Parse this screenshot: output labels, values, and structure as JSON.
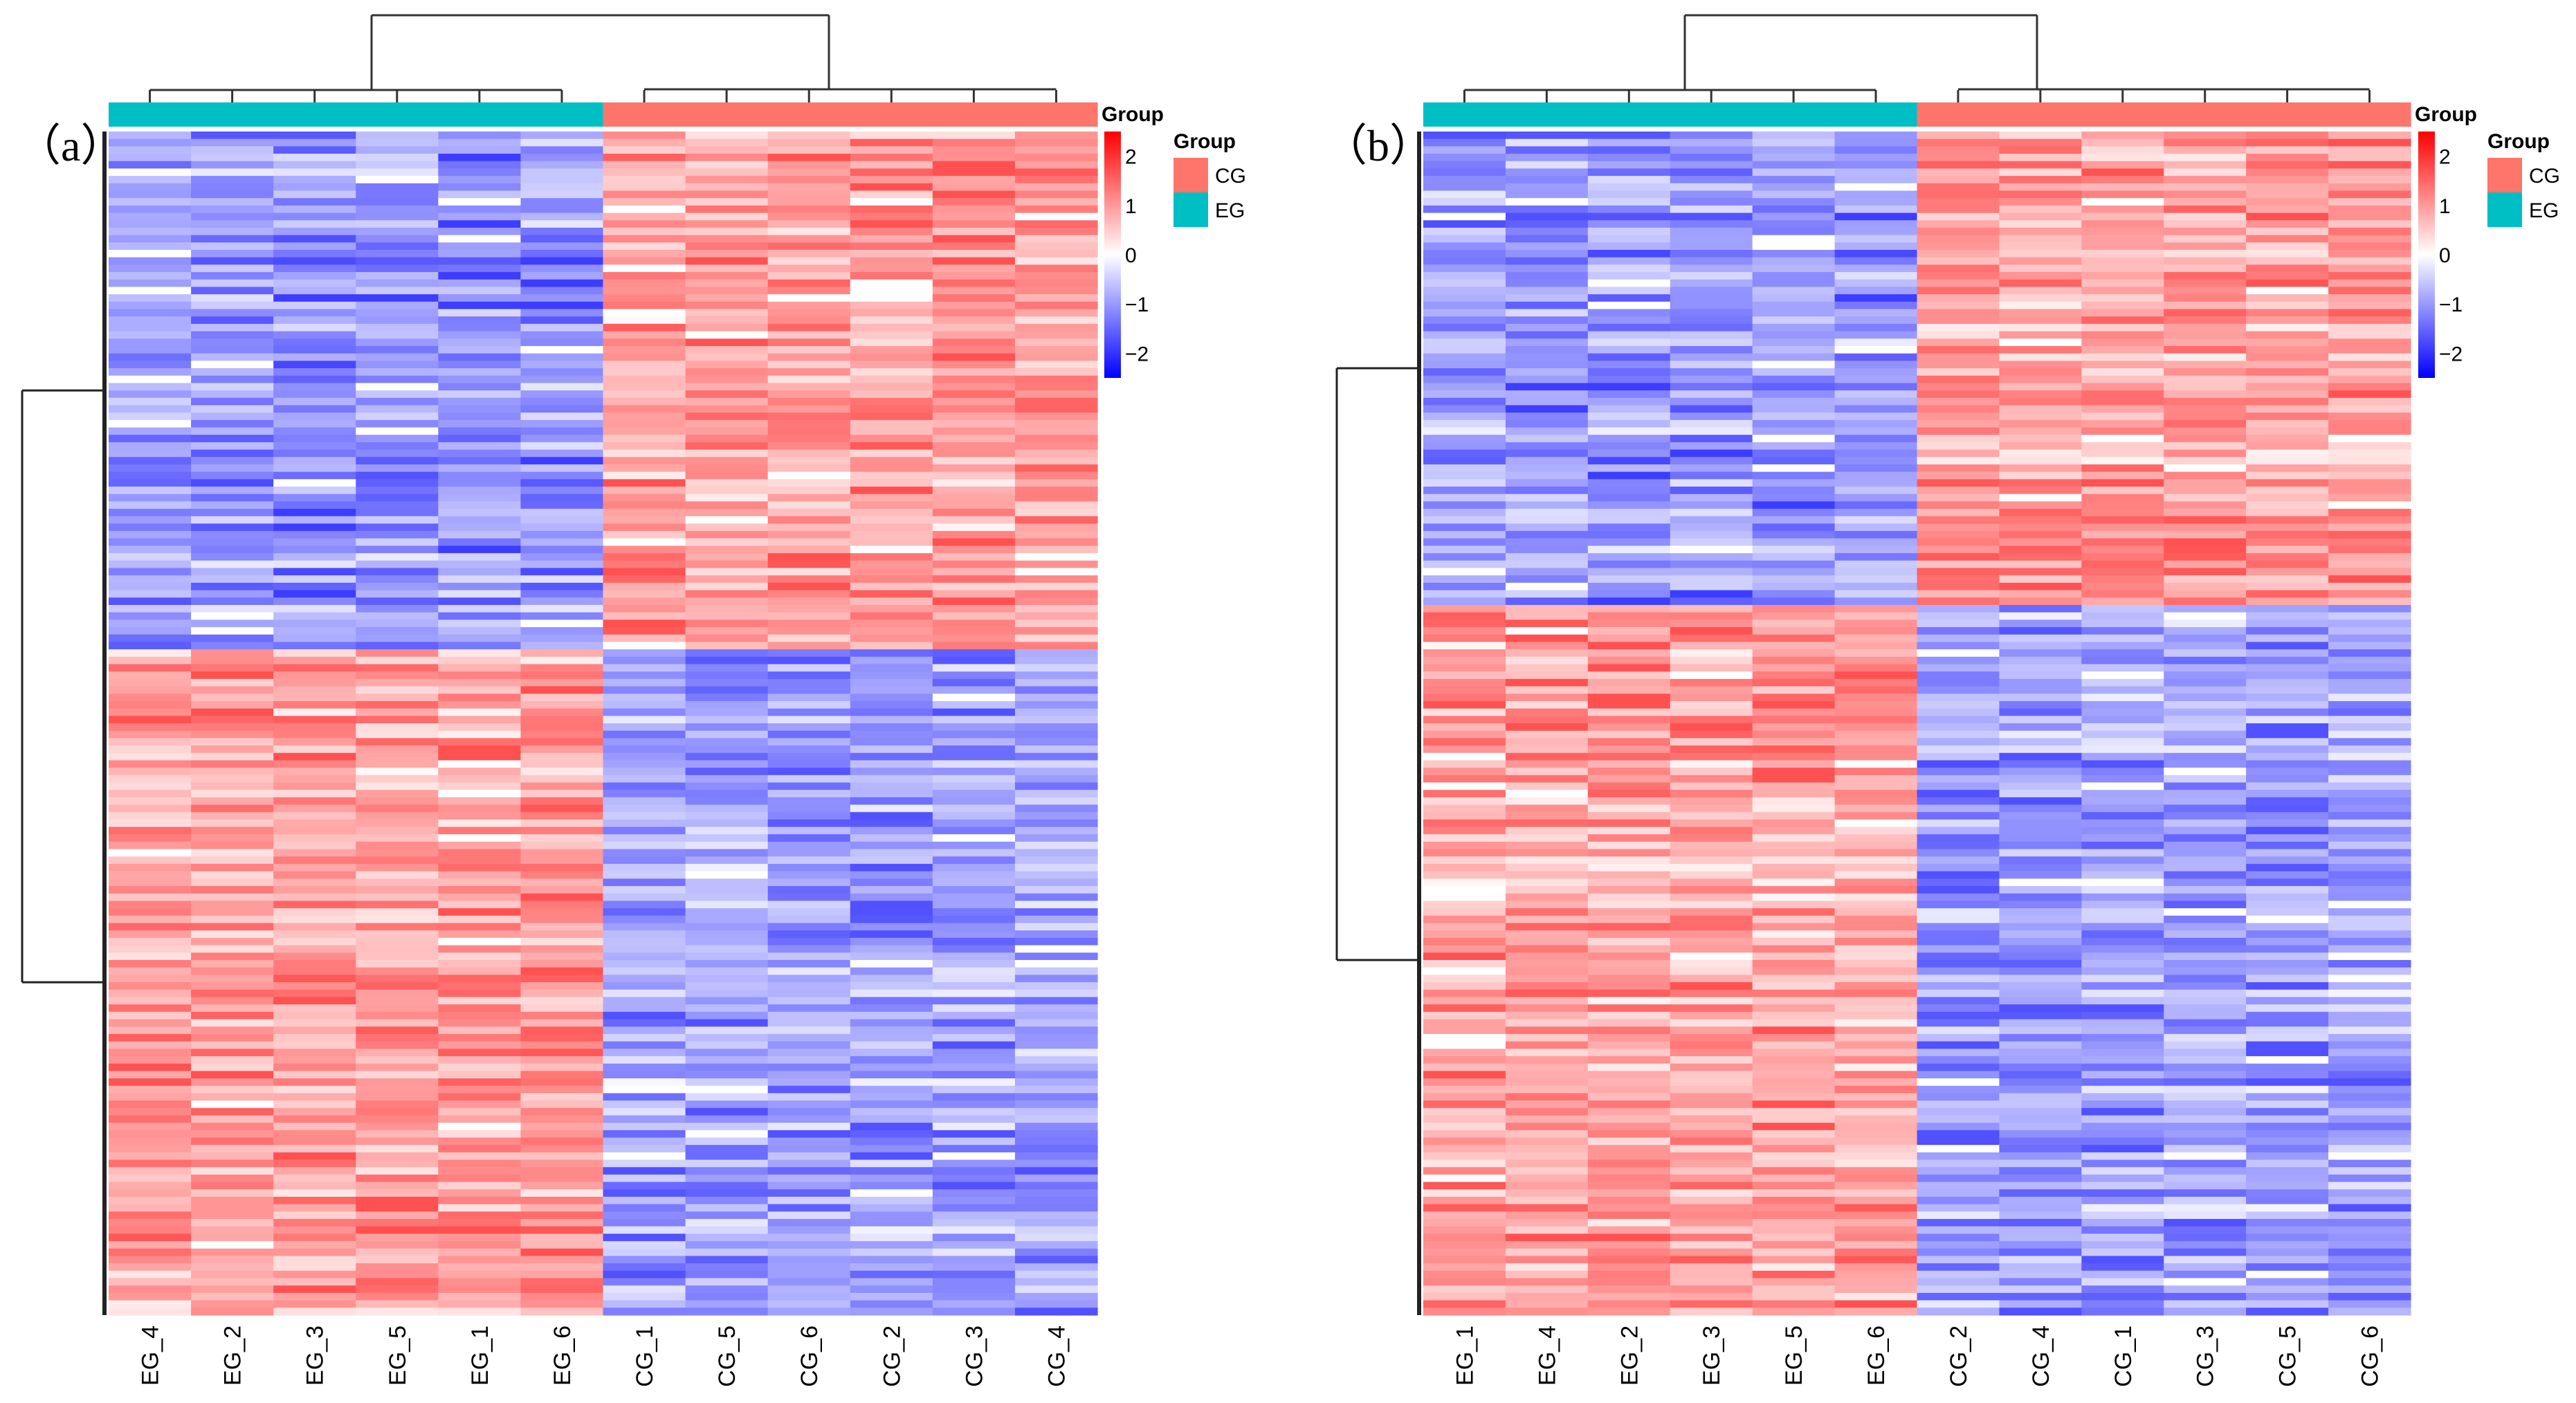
{
  "chart_data": [
    {
      "type": "heatmap",
      "panel_label": "（a）",
      "columns": [
        "EG_4",
        "EG_2",
        "EG_3",
        "EG_5",
        "EG_1",
        "EG_6",
        "CG_1",
        "CG_5",
        "CG_6",
        "CG_2",
        "CG_3",
        "CG_4"
      ],
      "column_groups": [
        "EG",
        "EG",
        "EG",
        "EG",
        "EG",
        "EG",
        "CG",
        "CG",
        "CG",
        "CG",
        "CG",
        "CG"
      ],
      "row_clusters": [
        {
          "name": "upper",
          "row_fraction": 0.44,
          "EG_mean": -1.0,
          "CG_mean": 0.9
        },
        {
          "name": "lower",
          "row_fraction": 0.56,
          "EG_mean": 0.9,
          "CG_mean": -0.9
        }
      ],
      "annotation_title": "Group",
      "colorbar": {
        "ticks": [
          "2",
          "1",
          "0",
          "−1",
          "−2"
        ],
        "range": [
          -2.5,
          2.5
        ],
        "low": "#0000ff",
        "mid": "#ffffff",
        "high": "#ff0000"
      },
      "legend": {
        "title": "Group",
        "items": [
          {
            "label": "CG",
            "color": "#ff756b"
          },
          {
            "label": "EG",
            "color": "#00bfc4"
          }
        ]
      },
      "seed": 7
    },
    {
      "type": "heatmap",
      "panel_label": "（b）",
      "columns": [
        "EG_1",
        "EG_4",
        "EG_2",
        "EG_3",
        "EG_5",
        "EG_6",
        "CG_2",
        "CG_4",
        "CG_1",
        "CG_3",
        "CG_5",
        "CG_6"
      ],
      "column_groups": [
        "EG",
        "EG",
        "EG",
        "EG",
        "EG",
        "EG",
        "CG",
        "CG",
        "CG",
        "CG",
        "CG",
        "CG"
      ],
      "row_clusters": [
        {
          "name": "upper",
          "row_fraction": 0.4,
          "EG_mean": -1.0,
          "CG_mean": 0.9
        },
        {
          "name": "lower",
          "row_fraction": 0.6,
          "EG_mean": 0.9,
          "CG_mean": -0.9
        }
      ],
      "annotation_title": "Group",
      "colorbar": {
        "ticks": [
          "2",
          "1",
          "0",
          "−1",
          "−2"
        ],
        "range": [
          -2.5,
          2.5
        ],
        "low": "#0000ff",
        "mid": "#ffffff",
        "high": "#ff0000"
      },
      "legend": {
        "title": "Group",
        "items": [
          {
            "label": "CG",
            "color": "#ff756b"
          },
          {
            "label": "EG",
            "color": "#00bfc4"
          }
        ]
      },
      "seed": 19
    }
  ]
}
